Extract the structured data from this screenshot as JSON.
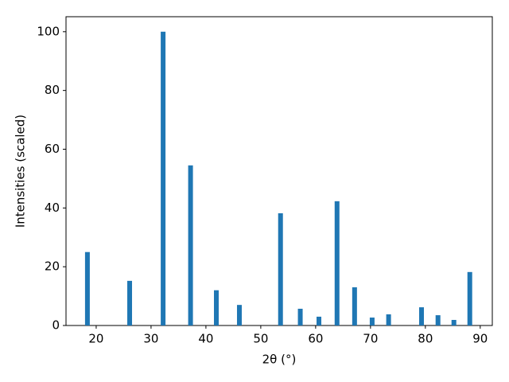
{
  "chart_data": {
    "type": "bar",
    "xlabel": "2θ (°)",
    "ylabel": "Intensities (scaled)",
    "x": [
      18.4,
      26.1,
      32.2,
      37.2,
      41.9,
      46.1,
      53.6,
      57.2,
      60.6,
      63.9,
      67.1,
      70.3,
      73.3,
      79.3,
      82.3,
      85.2,
      88.1
    ],
    "values": [
      25,
      15.2,
      100,
      54.5,
      12,
      7,
      38.2,
      5.7,
      3,
      42.3,
      13,
      2.7,
      3.8,
      6.2,
      3.5,
      1.9,
      18.2
    ],
    "color": "#1f77b4",
    "xlim": [
      14.5,
      92.2
    ],
    "ylim": [
      0,
      105.1
    ],
    "xticks": [
      20,
      30,
      40,
      50,
      60,
      70,
      80,
      90
    ],
    "yticks": [
      0,
      20,
      40,
      60,
      80,
      100
    ],
    "grid": false
  }
}
